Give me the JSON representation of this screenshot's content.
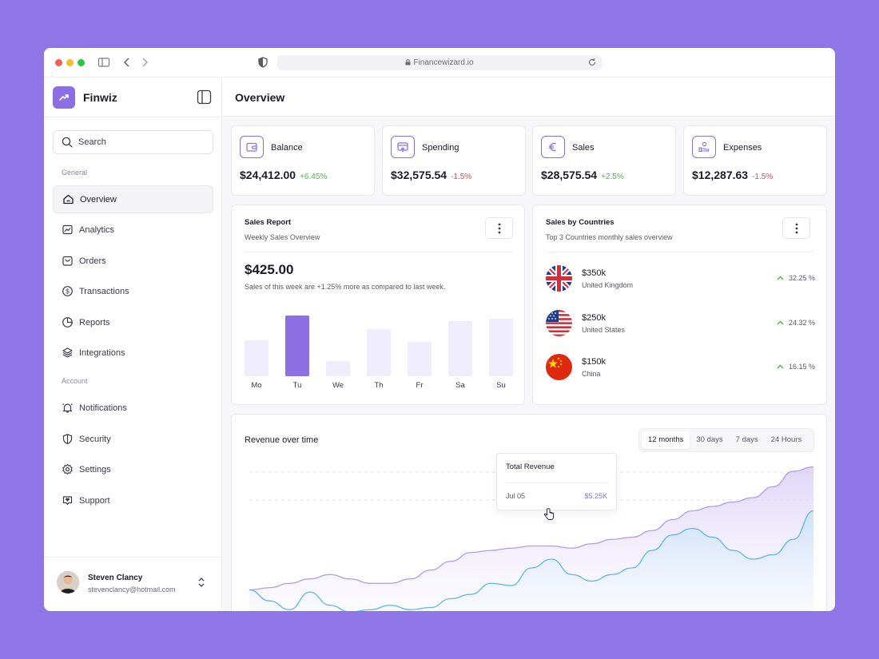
{
  "browser": {
    "url": "Financewizard.io"
  },
  "brand": {
    "name": "Finwiz"
  },
  "search": {
    "label": "Search"
  },
  "sidebar": {
    "section_general": "General",
    "section_account": "Account",
    "items": [
      {
        "label": "Overview",
        "icon": "home-icon"
      },
      {
        "label": "Analytics",
        "icon": "analytics-icon"
      },
      {
        "label": "Orders",
        "icon": "bag-icon"
      },
      {
        "label": "Transactions",
        "icon": "dollar-icon"
      },
      {
        "label": "Reports",
        "icon": "pie-icon"
      },
      {
        "label": "Integrations",
        "icon": "layers-icon"
      },
      {
        "label": "Notifications",
        "icon": "bell-icon"
      },
      {
        "label": "Security",
        "icon": "shield-icon"
      },
      {
        "label": "Settings",
        "icon": "gear-icon"
      },
      {
        "label": "Support",
        "icon": "chat-icon"
      }
    ]
  },
  "user": {
    "name": "Steven Clancy",
    "email": "stevenclancy@hotmail.com"
  },
  "page": {
    "title": "Overview"
  },
  "stats": [
    {
      "label": "Balance",
      "value": "$24,412.00",
      "change": "+6.45%",
      "icon": "wallet-icon"
    },
    {
      "label": "Spending",
      "value": "$32,575.54",
      "change": "-1.5%",
      "icon": "card-icon"
    },
    {
      "label": "Sales",
      "value": "$28,575.54",
      "change": "+2.5%",
      "icon": "euro-icon"
    },
    {
      "label": "Expenses",
      "value": "$12,287.63",
      "change": "-1.5%",
      "icon": "hand-coins-icon"
    }
  ],
  "sales_report": {
    "title": "Sales Report",
    "subtitle": "Weekly Sales Overview",
    "amount": "$425.00",
    "note": "Sales of this week are +1.25% more as compared to last week.",
    "highlight_color": "#8b6fe3"
  },
  "sales_by_countries": {
    "title": "Sales by Countries",
    "subtitle": "Top 3 Countries monthly sales overview",
    "countries": [
      {
        "amount": "$350k",
        "name": "United Kingdom",
        "change": "32.25 %"
      },
      {
        "amount": "$250k",
        "name": "United States",
        "change": "24.32 %"
      },
      {
        "amount": "$150k",
        "name": "China",
        "change": "16.15 %"
      }
    ]
  },
  "revenue": {
    "title": "Revenue over time",
    "ranges": [
      "12 months",
      "30 days",
      "7 days",
      "24 Hours"
    ],
    "active_range": "12 months",
    "tooltip": {
      "title": "Total Revenue",
      "date": "Jul 05",
      "value": "$5.25K"
    }
  },
  "chart_data": [
    {
      "type": "bar",
      "categories": [
        "Mo",
        "Tu",
        "We",
        "Th",
        "Fr",
        "Sa",
        "Su"
      ],
      "values": [
        50,
        85,
        21,
        66,
        48,
        77,
        80
      ],
      "highlight_index": 1,
      "ylim": [
        0,
        100
      ],
      "grid": false
    },
    {
      "type": "area",
      "x": [
        0,
        1,
        2,
        3,
        4,
        5,
        6,
        7,
        8,
        9,
        10,
        11,
        12,
        13,
        14,
        15,
        16,
        17,
        18,
        19,
        20,
        21,
        22,
        23,
        24,
        25,
        26,
        27,
        28
      ],
      "series": [
        {
          "values": [
            14,
            15,
            17,
            19,
            21,
            19,
            17,
            17,
            19,
            23,
            27,
            31,
            32,
            33,
            34,
            34,
            33,
            35,
            37,
            38,
            41,
            46,
            50,
            52,
            54,
            56,
            61,
            68,
            70
          ],
          "color": "#b39ae8"
        },
        {
          "values": [
            14,
            9,
            5,
            13,
            7,
            4,
            5,
            7,
            5,
            6,
            10,
            12,
            17,
            16,
            24,
            28,
            21,
            18,
            21,
            24,
            32,
            39,
            42,
            38,
            32,
            28,
            30,
            37,
            50
          ],
          "color": "#5fb6e6"
        }
      ],
      "ylim": [
        0,
        80
      ],
      "grid": true
    }
  ]
}
